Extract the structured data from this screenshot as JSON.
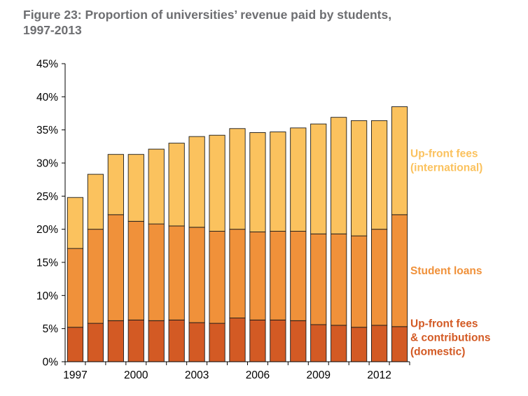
{
  "chart_data": {
    "type": "bar",
    "stacked": true,
    "title_lines": [
      "Figure 23: Proportion of universities’ revenue paid by students,",
      "1997-2013"
    ],
    "x": [
      1997,
      1998,
      1999,
      2000,
      2001,
      2002,
      2003,
      2004,
      2005,
      2006,
      2007,
      2008,
      2009,
      2010,
      2011,
      2012,
      2013
    ],
    "x_tick_labels": [
      "1997",
      "2000",
      "2003",
      "2006",
      "2009",
      "2012"
    ],
    "x_tick_values": [
      1997,
      2000,
      2003,
      2006,
      2009,
      2012
    ],
    "y_tick_labels": [
      "0%",
      "5%",
      "10%",
      "15%",
      "20%",
      "25%",
      "30%",
      "35%",
      "40%",
      "45%"
    ],
    "ylim": [
      0,
      45
    ],
    "grid": false,
    "series": [
      {
        "name": "Up-front fees & contributions (domestic)",
        "label_lines": [
          "Up-front fees",
          "& contributions",
          "(domestic)"
        ],
        "color": "#d35a24",
        "values": [
          5.2,
          5.8,
          6.2,
          6.3,
          6.2,
          6.3,
          5.9,
          5.8,
          6.6,
          6.3,
          6.3,
          6.2,
          5.6,
          5.5,
          5.2,
          5.5,
          5.3
        ]
      },
      {
        "name": "Student loans",
        "label_lines": [
          "Student loans"
        ],
        "color": "#f0913a",
        "values": [
          11.9,
          14.2,
          16.0,
          14.9,
          14.6,
          14.2,
          14.4,
          13.9,
          13.4,
          13.3,
          13.4,
          13.5,
          13.7,
          13.8,
          13.8,
          14.5,
          16.9
        ]
      },
      {
        "name": "Up-front fees (international)",
        "label_lines": [
          "Up-front fees",
          "(international)"
        ],
        "color": "#fbc25e",
        "values": [
          7.7,
          8.3,
          9.1,
          10.1,
          11.3,
          12.5,
          13.7,
          14.5,
          15.2,
          15.0,
          15.0,
          15.6,
          16.6,
          17.6,
          17.4,
          16.4,
          16.3
        ]
      }
    ]
  }
}
